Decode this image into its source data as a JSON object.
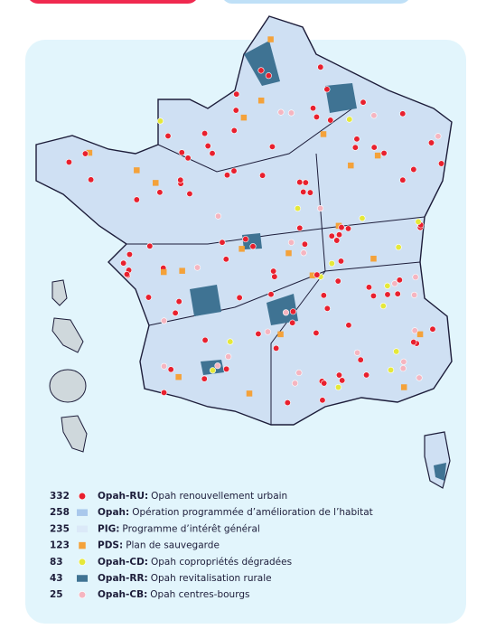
{
  "legend": [
    {
      "count": 332,
      "code": "Opah-RU:",
      "label": "Opah renouvellement urbain",
      "color": "#e8202e",
      "shape": "dot"
    },
    {
      "count": 258,
      "code": "Opah:",
      "label": "Opération programmée d’amélioration de l’habitat",
      "color": "#a9c8ec",
      "shape": "square"
    },
    {
      "count": 235,
      "code": "PIG:",
      "label": "Programme d’intérêt général",
      "color": "#dbe9f8",
      "shape": "square"
    },
    {
      "count": 123,
      "code": "PDS:",
      "label": "Plan de sauvegarde",
      "color": "#f4a23a",
      "shape": "small-square"
    },
    {
      "count": 83,
      "code": "Opah-CD:",
      "label": "Opah copropriétés dégradées",
      "color": "#e5e83a",
      "shape": "dot"
    },
    {
      "count": 43,
      "code": "Opah-RR:",
      "label": "Opah revitalisation rurale",
      "color": "#3f7393",
      "shape": "square"
    },
    {
      "count": 25,
      "code": "Opah-CB:",
      "label": "Opah centres-bourgs",
      "color": "#f5b5c0",
      "shape": "dot"
    }
  ]
}
